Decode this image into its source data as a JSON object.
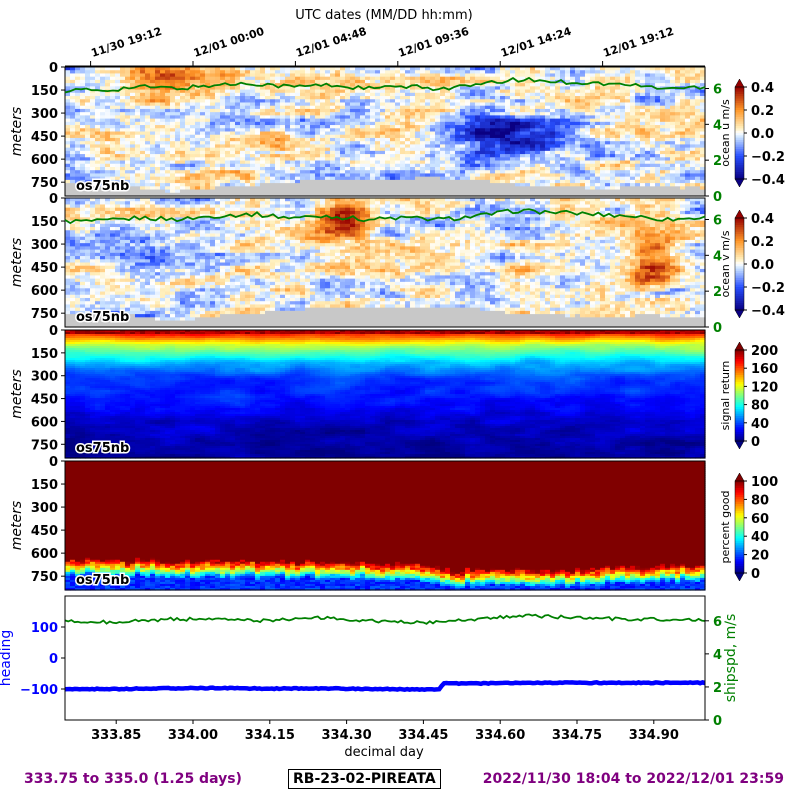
{
  "top_axis": {
    "title": "UTC dates (MM/DD hh:mm)",
    "ticks": [
      {
        "x": 333.8,
        "label": "11/30 19:12"
      },
      {
        "x": 334.0,
        "label": "12/01 00:00"
      },
      {
        "x": 334.2,
        "label": "12/01 04:48"
      },
      {
        "x": 334.4,
        "label": "12/01 09:36"
      },
      {
        "x": 334.6,
        "label": "12/01 14:24"
      },
      {
        "x": 334.8,
        "label": "12/01 19:12"
      }
    ]
  },
  "x_axis": {
    "label": "decimal day",
    "ticks": [
      "333.85",
      "334.00",
      "334.15",
      "334.30",
      "334.45",
      "334.60",
      "334.75",
      "334.90"
    ],
    "tick_values": [
      333.85,
      334.0,
      334.15,
      334.3,
      334.45,
      334.6,
      334.75,
      334.9
    ],
    "range": [
      333.75,
      335.0
    ]
  },
  "depth_axis": {
    "label": "meters",
    "ticks": [
      "0",
      "150",
      "300",
      "450",
      "600",
      "750"
    ],
    "tick_values": [
      0,
      150,
      300,
      450,
      600,
      750
    ],
    "range": [
      0,
      840
    ]
  },
  "panels": [
    {
      "id": "ocean-u",
      "tag": "os75nb",
      "cbar_label": "ocean u m/s",
      "cbar_ticks": [
        "0.4",
        "0.2",
        "0.0",
        "−0.2",
        "−0.4"
      ],
      "cbar_range": [
        -0.4,
        0.4
      ],
      "cmap": "bwr",
      "speed_ticks": [
        "6",
        "4",
        "2",
        "0"
      ]
    },
    {
      "id": "ocean-v",
      "tag": "os75nb",
      "cbar_label": "ocean v m/s",
      "cbar_ticks": [
        "0.4",
        "0.2",
        "0.0",
        "−0.2",
        "−0.4"
      ],
      "cbar_range": [
        -0.4,
        0.4
      ],
      "cmap": "bwr",
      "speed_ticks": [
        "6",
        "4",
        "2",
        "0"
      ]
    },
    {
      "id": "signal-return",
      "tag": "os75nb",
      "cbar_label": "signal return",
      "cbar_ticks": [
        "200",
        "160",
        "120",
        "80",
        "40",
        "0"
      ],
      "cbar_range": [
        0,
        200
      ],
      "cmap": "jet"
    },
    {
      "id": "percent-good",
      "tag": "os75nb",
      "cbar_label": "percent good",
      "cbar_ticks": [
        "100",
        "80",
        "60",
        "40",
        "20",
        "0"
      ],
      "cbar_range": [
        0,
        100
      ],
      "cmap": "jet"
    }
  ],
  "bottom_panel": {
    "left_label": "heading",
    "left_ticks": [
      "100",
      "0",
      "−100"
    ],
    "left_tick_values": [
      100,
      0,
      -100
    ],
    "left_range": [
      -200,
      200
    ],
    "right_label": "shipspd, m/s",
    "right_ticks": [
      "6",
      "4",
      "2",
      "0"
    ],
    "right_tick_values": [
      6,
      4,
      2,
      0
    ],
    "right_range": [
      0,
      7.5
    ]
  },
  "chart_data": [
    {
      "type": "heatmap",
      "title": "",
      "xlabel": "decimal day",
      "ylabel": "meters",
      "colorbar_label": "ocean u m/s",
      "xlim": [
        333.75,
        335.0
      ],
      "ylim": [
        840,
        0
      ],
      "clim": [
        -0.4,
        0.4
      ],
      "overlay": {
        "name": "ship speed",
        "values_ms": [
          5.9,
          5.9,
          6.1,
          6.0,
          6.2,
          6.3,
          6.1,
          6.2,
          6.0,
          6.1,
          6.0,
          6.2,
          6.5,
          6.4,
          6.3,
          6.2,
          6.0,
          6.1
        ]
      },
      "notable_features": "strong negative (~-0.35) core near 334.55-334.75 at 350-550 m; positive ~0.2 near surface 333.85-334.05"
    },
    {
      "type": "heatmap",
      "title": "",
      "xlabel": "decimal day",
      "ylabel": "meters",
      "colorbar_label": "ocean v m/s",
      "xlim": [
        333.75,
        335.0
      ],
      "ylim": [
        840,
        0
      ],
      "clim": [
        -0.4,
        0.4
      ],
      "overlay": {
        "name": "ship speed",
        "values_ms": [
          5.9,
          5.9,
          6.1,
          6.0,
          6.2,
          6.3,
          6.1,
          6.2,
          6.0,
          6.1,
          6.0,
          6.2,
          6.5,
          6.4,
          6.3,
          6.2,
          6.0,
          6.1
        ]
      },
      "notable_features": "positive (~0.3) near 334.25-334.35 upper 300 m and 334.85-334.95 at 300-600 m"
    },
    {
      "type": "heatmap",
      "title": "",
      "xlabel": "decimal day",
      "ylabel": "meters",
      "colorbar_label": "signal return",
      "xlim": [
        333.75,
        335.0
      ],
      "ylim": [
        840,
        0
      ],
      "clim": [
        0,
        200
      ],
      "depth_profile": {
        "depths": [
          0,
          50,
          100,
          150,
          220,
          300,
          400,
          500,
          600,
          750,
          840
        ],
        "values": [
          190,
          150,
          110,
          90,
          60,
          40,
          30,
          25,
          15,
          8,
          5
        ]
      }
    },
    {
      "type": "heatmap",
      "title": "",
      "xlabel": "decimal day",
      "ylabel": "meters",
      "colorbar_label": "percent good",
      "xlim": [
        333.75,
        335.0
      ],
      "ylim": [
        840,
        0
      ],
      "clim": [
        0,
        100
      ],
      "cutoff_depth": {
        "x": [
          333.75,
          334.0,
          334.3,
          334.45,
          334.5,
          334.6,
          334.75,
          334.9,
          335.0
        ],
        "depth_m": [
          700,
          705,
          715,
          740,
          770,
          765,
          760,
          740,
          730
        ]
      }
    },
    {
      "type": "line",
      "title": "",
      "xlabel": "decimal day",
      "xlim": [
        333.75,
        335.0
      ],
      "series": [
        {
          "name": "heading",
          "axis": "left",
          "x": [
            333.75,
            333.85,
            333.95,
            334.05,
            334.15,
            334.25,
            334.35,
            334.45,
            334.48,
            334.49,
            334.55,
            334.65,
            334.75,
            334.85,
            334.95,
            335.0
          ],
          "values": [
            -100,
            -100,
            -98,
            -97,
            -99,
            -98,
            -100,
            -101,
            -101,
            -82,
            -82,
            -80,
            -80,
            -80,
            -80,
            -80
          ]
        },
        {
          "name": "shipspd, m/s",
          "axis": "right",
          "x": [
            333.75,
            333.85,
            333.95,
            334.05,
            334.15,
            334.25,
            334.35,
            334.45,
            334.55,
            334.65,
            334.75,
            334.85,
            334.95,
            335.0
          ],
          "values": [
            6.0,
            5.9,
            6.1,
            6.1,
            6.0,
            6.2,
            6.0,
            5.9,
            6.1,
            6.3,
            6.2,
            6.1,
            6.1,
            6.0
          ]
        }
      ]
    }
  ],
  "footer": {
    "range": "333.75 to 335.0 (1.25 days)",
    "cruise": "RB-23-02-PIREATA",
    "dates": "2022/11/30 18:04 to 2022/12/01 23:59"
  },
  "colors": {
    "heading": "#0000ff",
    "shipspd": "#008000",
    "footer": "#7f007f",
    "noData": "#c8c8c8"
  }
}
